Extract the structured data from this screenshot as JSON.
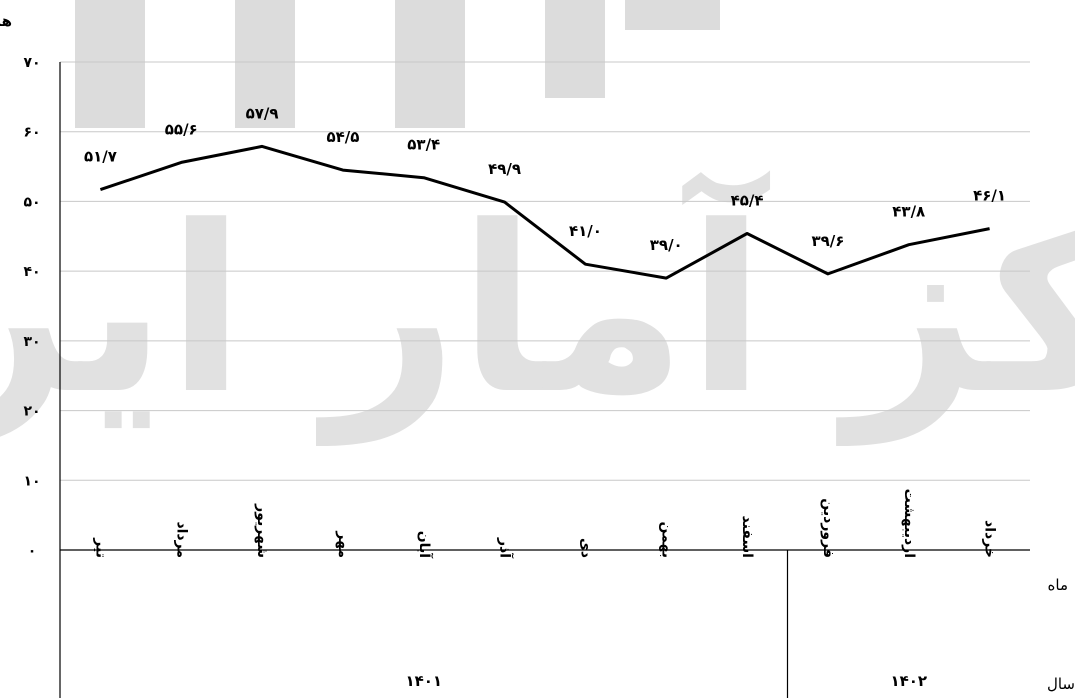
{
  "watermark": {
    "text": "مرکز آمار ایران",
    "color": "#dcdcdc"
  },
  "chart_data": {
    "type": "line",
    "unit_label": "هزار تن",
    "row_labels": {
      "month": "ماه",
      "year": "سال"
    },
    "y_ticks": [
      "۰",
      "۱۰",
      "۲۰",
      "۳۰",
      "۴۰",
      "۵۰",
      "۶۰",
      "۷۰"
    ],
    "ylim": [
      0,
      70
    ],
    "grid": true,
    "categories": [
      "تیر",
      "مرداد",
      "شهریور",
      "مهر",
      "آبان",
      "آذر",
      "دی",
      "بهمن",
      "اسفند",
      "فروردین",
      "اردیبهشت",
      "خرداد"
    ],
    "values": [
      51.7,
      55.6,
      57.9,
      54.5,
      53.4,
      49.9,
      41.0,
      39.0,
      45.4,
      39.6,
      43.8,
      46.1
    ],
    "value_labels": [
      "۵۱/۷",
      "۵۵/۶",
      "۵۷/۹",
      "۵۴/۵",
      "۵۳/۴",
      "۴۹/۹",
      "۴۱/۰",
      "۳۹/۰",
      "۴۵/۴",
      "۳۹/۶",
      "۴۳/۸",
      "۴۶/۱"
    ],
    "years": [
      {
        "label": "۱۴۰۱",
        "months": 9
      },
      {
        "label": "۱۴۰۲",
        "months": 3
      }
    ],
    "line_color": "#000000",
    "grid_color": "#c8c8c8"
  }
}
